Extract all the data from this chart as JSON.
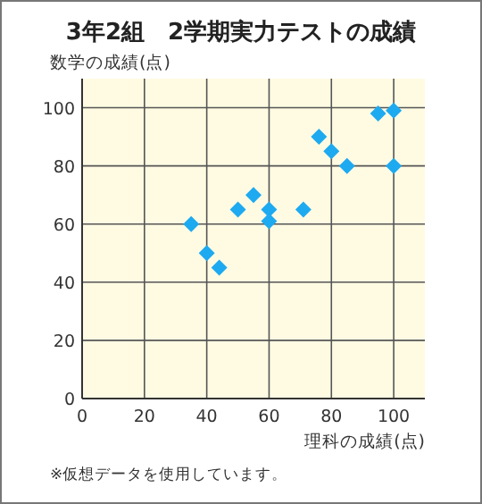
{
  "chart_data": {
    "type": "scatter",
    "title": "3年2組　2学期実力テストの成績",
    "xlabel": "理科の成績(点)",
    "ylabel": "数学の成績(点)",
    "x": [
      35,
      40,
      44,
      50,
      55,
      60,
      60,
      71,
      76,
      80,
      85,
      95,
      100,
      100
    ],
    "series": [
      {
        "color": "#1eaaf0",
        "values": [
          60,
          50,
          45,
          65,
          70,
          65,
          61,
          65,
          90,
          85,
          80,
          98,
          99,
          80
        ]
      }
    ],
    "xlim": [
      0,
      110
    ],
    "ylim": [
      0,
      110
    ],
    "xticks": [
      0,
      20,
      40,
      60,
      80,
      100
    ],
    "yticks": [
      0,
      20,
      40,
      60,
      80,
      100
    ],
    "grid": true,
    "marker": "diamond",
    "annotations": [
      "※仮想データを使用しています。"
    ]
  }
}
